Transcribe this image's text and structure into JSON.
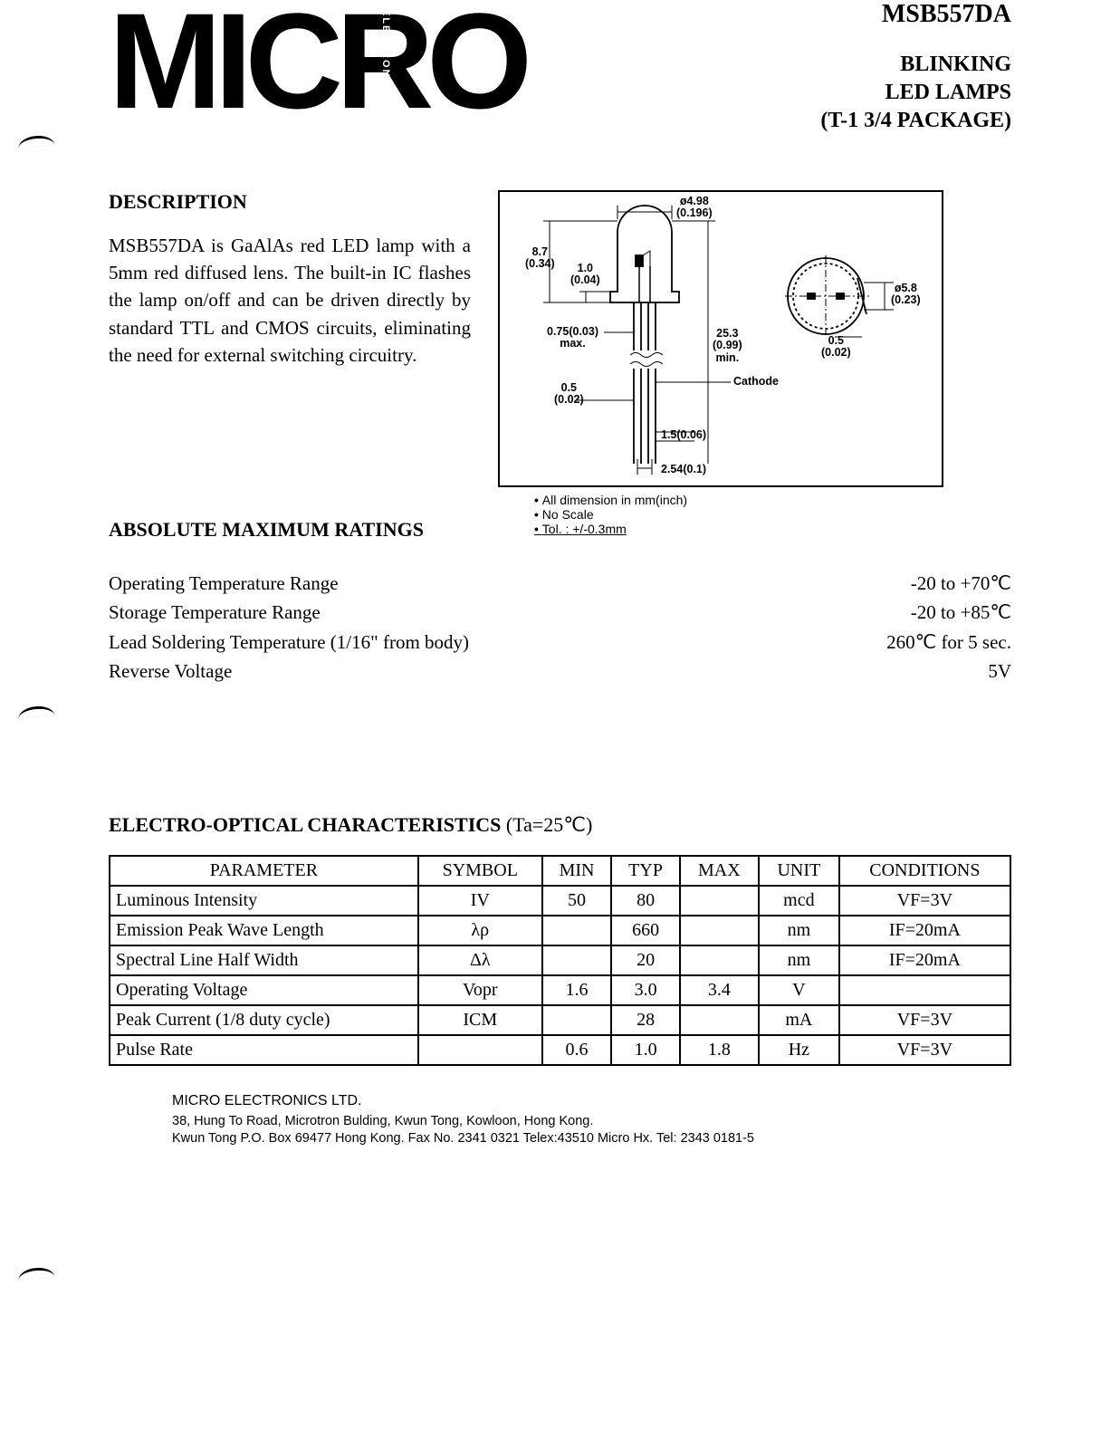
{
  "header": {
    "logo_text": "MICRO",
    "logo_vertical": "ELECTRONIC",
    "part_number": "MSB557DA",
    "subtitle_line1": "BLINKING",
    "subtitle_line2": "LED LAMPS",
    "subtitle_line3": "(T-1 3/4 PACKAGE)"
  },
  "description": {
    "heading": "DESCRIPTION",
    "text": "MSB557DA is GaAlAs red LED lamp with a 5mm red diffused lens. The built-in IC flashes the lamp on/off and can be driven directly by standard TTL and CMOS circuits, eliminating the need for external switching circuitry."
  },
  "diagram": {
    "dims": {
      "dia_top": "ø4.98\n(0.196)",
      "h_body": "8.7\n(0.34)",
      "flange": "1.0\n(0.04)",
      "lead_w": "0.75(0.03)\nmax.",
      "lead_t": "0.5\n(0.02)",
      "total_h": "25.3\n(0.99)\nmin.",
      "cathode": "Cathode",
      "stop": "1.5(0.06)",
      "pitch": "2.54(0.1)",
      "side_dia": "ø5.8\n(0.23)",
      "side_flat": "0.5\n(0.02)"
    },
    "notes": {
      "n1": "All dimension in mm(inch)",
      "n2": "No Scale",
      "n3": "Tol. : +/-0.3mm"
    }
  },
  "ratings": {
    "heading": "ABSOLUTE MAXIMUM RATINGS",
    "rows": [
      {
        "label": "Operating Temperature Range",
        "value": "-20 to +70℃"
      },
      {
        "label": "Storage Temperature Range",
        "value": "-20 to +85℃"
      },
      {
        "label": "Lead Soldering Temperature (1/16\" from body)",
        "value": "260℃ for 5 sec."
      },
      {
        "label": "Reverse Voltage",
        "value": "5V"
      }
    ]
  },
  "characteristics": {
    "heading_bold": "ELECTRO-OPTICAL CHARACTERISTICS",
    "heading_cond": " (Ta=25℃)",
    "columns": [
      "PARAMETER",
      "SYMBOL",
      "MIN",
      "TYP",
      "MAX",
      "UNIT",
      "CONDITIONS"
    ],
    "rows": [
      {
        "param": "Luminous Intensity",
        "symbol": "IV",
        "min": "50",
        "typ": "80",
        "max": "",
        "unit": "mcd",
        "cond": "VF=3V"
      },
      {
        "param": "Emission Peak Wave Length",
        "symbol": "λρ",
        "min": "",
        "typ": "660",
        "max": "",
        "unit": "nm",
        "cond": "IF=20mA"
      },
      {
        "param": "Spectral Line Half Width",
        "symbol": "Δλ",
        "min": "",
        "typ": "20",
        "max": "",
        "unit": "nm",
        "cond": "IF=20mA"
      },
      {
        "param": "Operating Voltage",
        "symbol": "Vopr",
        "min": "1.6",
        "typ": "3.0",
        "max": "3.4",
        "unit": "V",
        "cond": ""
      },
      {
        "param": "Peak Current (1/8 duty cycle)",
        "symbol": "ICM",
        "min": "",
        "typ": "28",
        "max": "",
        "unit": "mA",
        "cond": "VF=3V"
      },
      {
        "param": "Pulse Rate",
        "symbol": "",
        "min": "0.6",
        "typ": "1.0",
        "max": "1.8",
        "unit": "Hz",
        "cond": "VF=3V"
      }
    ]
  },
  "footer": {
    "company": "MICRO ELECTRONICS LTD.",
    "addr1": "38, Hung To Road, Microtron Bulding, Kwun Tong, Kowloon, Hong Kong.",
    "addr2": "Kwun Tong P.O. Box 69477 Hong Kong. Fax No. 2341 0321   Telex:43510 Micro Hx.   Tel: 2343 0181-5"
  }
}
